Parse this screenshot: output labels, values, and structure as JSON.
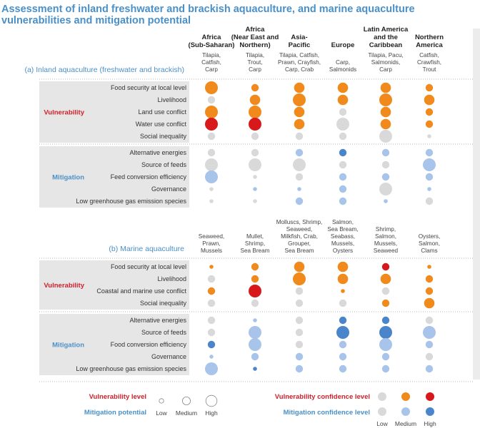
{
  "title_line1": "Assessment of inland freshwater and brackish aquaculture, and marine aquaculture",
  "title_line2": "vulnerabilities and mitigation potential",
  "regions": [
    [
      "Africa",
      "(Sub-Saharan)"
    ],
    [
      "Africa",
      "(Near East and",
      "Northern)"
    ],
    [
      "Asia-",
      "Pacific"
    ],
    [
      "Europe"
    ],
    [
      "Latin America",
      "and the",
      "Caribbean"
    ],
    [
      "Northern",
      "America"
    ]
  ],
  "colors": {
    "vul": {
      "low": "#d9d9d9",
      "medium": "#f08a1c",
      "high": "#d7191c"
    },
    "mit": {
      "low": "#d9d9d9",
      "medium": "#a9c4ea",
      "high": "#4a85cc"
    }
  },
  "sections": [
    {
      "key": "inland",
      "label": "(a) Inland aquaculture (freshwater and brackish)",
      "species": [
        [
          "Tilapia,",
          "Catfish,",
          "Carp"
        ],
        [
          "Tilapia,",
          "Trout,",
          "Carp"
        ],
        [
          "Tilapia, Catfish,",
          "Prawn, Crayfish,",
          "Carp, Crab"
        ],
        [
          "Carp,",
          "Salmonids"
        ],
        [
          "Tilapia, Pacu,",
          "Salmonids,",
          "Carp"
        ],
        [
          "Catfish,",
          "Crawfish,",
          "Trout"
        ]
      ],
      "groups": [
        {
          "type": "vul",
          "label": "Vulnerability",
          "rows": [
            {
              "label": "Food security at local level",
              "cells": [
                [
                  3,
                  2
                ],
                [
                  1,
                  2
                ],
                [
                  2,
                  2
                ],
                [
                  2,
                  2
                ],
                [
                  2,
                  2
                ],
                [
                  1,
                  2
                ]
              ]
            },
            {
              "label": "Livelihood",
              "cells": [
                [
                  1,
                  1
                ],
                [
                  2,
                  2
                ],
                [
                  3,
                  2
                ],
                [
                  2,
                  2
                ],
                [
                  3,
                  2
                ],
                [
                  2,
                  2
                ]
              ]
            },
            {
              "label": "Land use conflict",
              "cells": [
                [
                  3,
                  2
                ],
                [
                  3,
                  2
                ],
                [
                  2,
                  2
                ],
                [
                  1,
                  1
                ],
                [
                  2,
                  2
                ],
                [
                  1,
                  2
                ]
              ]
            },
            {
              "label": "Water use conflict",
              "cells": [
                [
                  3,
                  3
                ],
                [
                  3,
                  3
                ],
                [
                  2,
                  2
                ],
                [
                  3,
                  1
                ],
                [
                  2,
                  2
                ],
                [
                  1,
                  2
                ]
              ]
            },
            {
              "label": "Social inequality",
              "cells": [
                [
                  1,
                  1
                ],
                [
                  1,
                  1
                ],
                [
                  1,
                  1
                ],
                [
                  1,
                  1
                ],
                [
                  3,
                  1
                ],
                [
                  0,
                  1
                ]
              ]
            }
          ]
        },
        {
          "type": "mit",
          "label": "Mitigation",
          "rows": [
            {
              "label": "Alternative energies",
              "cells": [
                [
                  1,
                  1
                ],
                [
                  1,
                  1
                ],
                [
                  1,
                  2
                ],
                [
                  1,
                  3
                ],
                [
                  1,
                  2
                ],
                [
                  1,
                  2
                ]
              ]
            },
            {
              "label": "Source of feeds",
              "cells": [
                [
                  3,
                  1
                ],
                [
                  3,
                  1
                ],
                [
                  3,
                  1
                ],
                [
                  1,
                  1
                ],
                [
                  1,
                  1
                ],
                [
                  3,
                  2
                ]
              ]
            },
            {
              "label": "Feed conversion efficiency",
              "cells": [
                [
                  3,
                  2
                ],
                [
                  0,
                  1
                ],
                [
                  1,
                  1
                ],
                [
                  1,
                  2
                ],
                [
                  1,
                  2
                ],
                [
                  1,
                  2
                ]
              ]
            },
            {
              "label": "Governance",
              "cells": [
                [
                  0,
                  1
                ],
                [
                  0,
                  2
                ],
                [
                  0,
                  2
                ],
                [
                  1,
                  2
                ],
                [
                  3,
                  1
                ],
                [
                  0,
                  2
                ]
              ]
            },
            {
              "label": "Low greenhouse gas emission species",
              "cells": [
                [
                  0,
                  1
                ],
                [
                  0,
                  1
                ],
                [
                  1,
                  2
                ],
                [
                  1,
                  2
                ],
                [
                  0,
                  2
                ],
                [
                  1,
                  1
                ]
              ]
            }
          ]
        }
      ]
    },
    {
      "key": "marine",
      "label": "(b) Marine aquaculture",
      "species": [
        [
          "Seaweed,",
          "Prawn,",
          "Mussels"
        ],
        [
          "Mullet,",
          "Shrimp,",
          "Sea Bream"
        ],
        [
          "Molluscs, Shrimp,",
          "Seaweed,",
          "Milkfish, Crab,",
          "Grouper,",
          "Sea Bream"
        ],
        [
          "Salmon,",
          "Sea Bream,",
          "Seabass,",
          "Mussels,",
          "Oysters"
        ],
        [
          "Shrimp,",
          "Salmon,",
          "Mussels,",
          "Seaweed"
        ],
        [
          "Oysters,",
          "Salmon,",
          "Clams"
        ]
      ],
      "groups": [
        {
          "type": "vul",
          "label": "Vulnerability",
          "rows": [
            {
              "label": "Food security at local level",
              "cells": [
                [
                  0,
                  2
                ],
                [
                  1,
                  2
                ],
                [
                  2,
                  2
                ],
                [
                  2,
                  2
                ],
                [
                  1,
                  3
                ],
                [
                  0,
                  2
                ]
              ]
            },
            {
              "label": "Livelihood",
              "cells": [
                [
                  1,
                  1
                ],
                [
                  1,
                  2
                ],
                [
                  3,
                  2
                ],
                [
                  2,
                  2
                ],
                [
                  2,
                  2
                ],
                [
                  1,
                  2
                ]
              ]
            },
            {
              "label": "Coastal and marine use conflict",
              "cells": [
                [
                  1,
                  2
                ],
                [
                  3,
                  3
                ],
                [
                  1,
                  1
                ],
                [
                  0,
                  2
                ],
                [
                  1,
                  1
                ],
                [
                  1,
                  2
                ]
              ]
            },
            {
              "label": "Social inequality",
              "cells": [
                [
                  1,
                  1
                ],
                [
                  1,
                  1
                ],
                [
                  1,
                  1
                ],
                [
                  1,
                  1
                ],
                [
                  1,
                  2
                ],
                [
                  2,
                  2
                ]
              ]
            }
          ]
        },
        {
          "type": "mit",
          "label": "Mitigation",
          "rows": [
            {
              "label": "Alternative energies",
              "cells": [
                [
                  1,
                  1
                ],
                [
                  0,
                  2
                ],
                [
                  1,
                  1
                ],
                [
                  1,
                  3
                ],
                [
                  1,
                  3
                ],
                [
                  1,
                  1
                ]
              ]
            },
            {
              "label": "Source of feeds",
              "cells": [
                [
                  1,
                  1
                ],
                [
                  3,
                  2
                ],
                [
                  1,
                  1
                ],
                [
                  3,
                  3
                ],
                [
                  3,
                  3
                ],
                [
                  3,
                  2
                ]
              ]
            },
            {
              "label": "Food conversion efficiency",
              "cells": [
                [
                  1,
                  3
                ],
                [
                  3,
                  2
                ],
                [
                  1,
                  1
                ],
                [
                  1,
                  2
                ],
                [
                  3,
                  2
                ],
                [
                  1,
                  2
                ]
              ]
            },
            {
              "label": "Governance",
              "cells": [
                [
                  0,
                  2
                ],
                [
                  1,
                  2
                ],
                [
                  1,
                  2
                ],
                [
                  1,
                  2
                ],
                [
                  1,
                  2
                ],
                [
                  1,
                  1
                ]
              ]
            },
            {
              "label": "Low greenhouse gas emission species",
              "cells": [
                [
                  3,
                  2
                ],
                [
                  0,
                  3
                ],
                [
                  1,
                  2
                ],
                [
                  1,
                  2
                ],
                [
                  1,
                  2
                ],
                [
                  1,
                  2
                ]
              ]
            }
          ]
        }
      ]
    }
  ],
  "legend": {
    "vul_level_label": "Vulnerability level",
    "mit_potential_label": "Mitigation potential",
    "size_labels": [
      "Low",
      "Medium",
      "High"
    ],
    "vul_conf_label": "Vulnerability confidence level",
    "mit_conf_label": "Mitigation confidence level",
    "conf_labels": [
      "Low",
      "Medium",
      "High"
    ]
  }
}
